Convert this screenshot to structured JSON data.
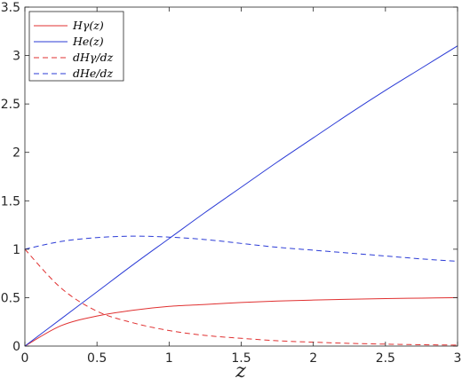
{
  "chart_data": {
    "type": "line",
    "xlabel": "z",
    "ylabel": "",
    "xlim": [
      0,
      3
    ],
    "ylim": [
      0,
      3.5
    ],
    "xticks": [
      0,
      0.5,
      1,
      1.5,
      2,
      2.5,
      3
    ],
    "yticks": [
      0,
      0.5,
      1,
      1.5,
      2,
      2.5,
      3,
      3.5
    ],
    "x_tick_labels": [
      "0",
      "0.5",
      "1",
      "1.5",
      "2",
      "2.5",
      "3"
    ],
    "y_tick_labels": [
      "0",
      "0.5",
      "1",
      "1.5",
      "2",
      "2.5",
      "3",
      "3.5"
    ],
    "grid": false,
    "legend_position": "top-left",
    "x": [
      0,
      0.25,
      0.5,
      0.75,
      1,
      1.25,
      1.5,
      1.75,
      2,
      2.25,
      2.5,
      2.75,
      3
    ],
    "series": [
      {
        "name": "Hγ(z)",
        "color": "#e03030",
        "dash": "solid",
        "values": [
          0,
          0.21,
          0.31,
          0.37,
          0.41,
          0.43,
          0.45,
          0.465,
          0.475,
          0.483,
          0.49,
          0.495,
          0.5
        ]
      },
      {
        "name": "He(z)",
        "color": "#2b3bd6",
        "dash": "solid",
        "values": [
          0,
          0.28,
          0.56,
          0.84,
          1.11,
          1.38,
          1.64,
          1.9,
          2.15,
          2.4,
          2.64,
          2.87,
          3.1
        ]
      },
      {
        "name": "dHγ/dz",
        "color": "#e03030",
        "dash": "dashed",
        "values": [
          1,
          0.6,
          0.36,
          0.24,
          0.16,
          0.11,
          0.08,
          0.055,
          0.04,
          0.028,
          0.02,
          0.014,
          0.01
        ]
      },
      {
        "name": "dHe/dz",
        "color": "#2b3bd6",
        "dash": "dashed",
        "values": [
          1,
          1.08,
          1.12,
          1.135,
          1.125,
          1.1,
          1.06,
          1.02,
          0.99,
          0.96,
          0.93,
          0.9,
          0.875
        ]
      }
    ]
  }
}
